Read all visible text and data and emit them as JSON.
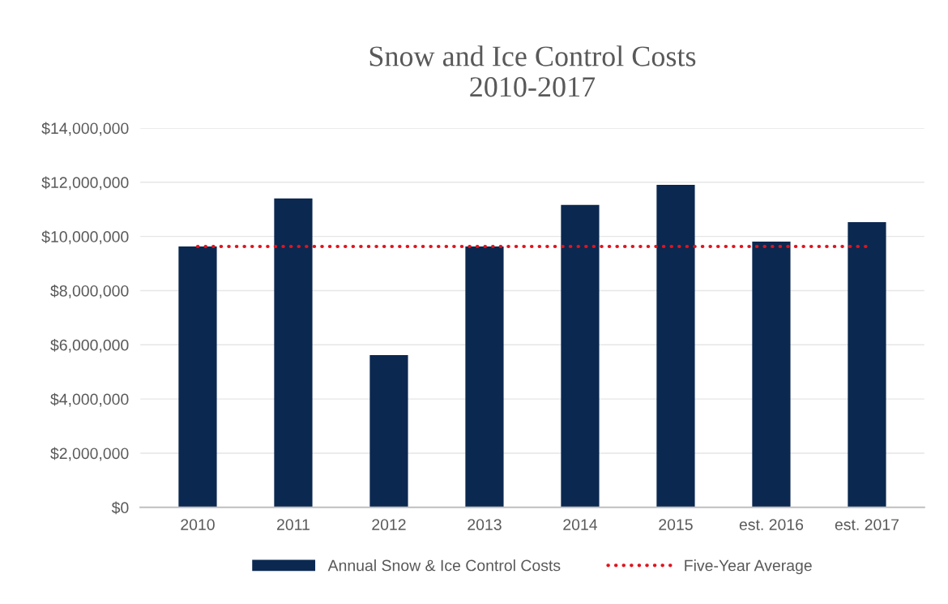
{
  "chart_data": {
    "type": "bar",
    "title": "Snow and Ice Control Costs\n2010-2017",
    "categories": [
      "2010",
      "2011",
      "2012",
      "2013",
      "2014",
      "2015",
      "est. 2016",
      "est. 2017"
    ],
    "series": [
      {
        "name": "Annual Snow & Ice Control Costs",
        "color": "#0b2850",
        "values": [
          9630000,
          11400000,
          5620000,
          9630000,
          11160000,
          11900000,
          9810000,
          10530000
        ]
      },
      {
        "name": "Five-Year Average",
        "type": "line",
        "line_style": "dotted",
        "color": "#e0141e",
        "values": [
          9630000,
          9630000,
          9630000,
          9630000,
          9630000,
          9630000,
          9630000,
          9630000
        ]
      }
    ],
    "ylim": [
      0,
      14000000
    ],
    "yticks": [
      {
        "value": 0,
        "label": "$0"
      },
      {
        "value": 2000000,
        "label": "$2,000,000"
      },
      {
        "value": 4000000,
        "label": "$4,000,000"
      },
      {
        "value": 6000000,
        "label": "$6,000,000"
      },
      {
        "value": 8000000,
        "label": "$8,000,000"
      },
      {
        "value": 10000000,
        "label": "$10,000,000"
      },
      {
        "value": 12000000,
        "label": "$12,000,000"
      },
      {
        "value": 14000000,
        "label": "$14,000,000"
      }
    ],
    "grid": "y",
    "legend": "bottom"
  }
}
